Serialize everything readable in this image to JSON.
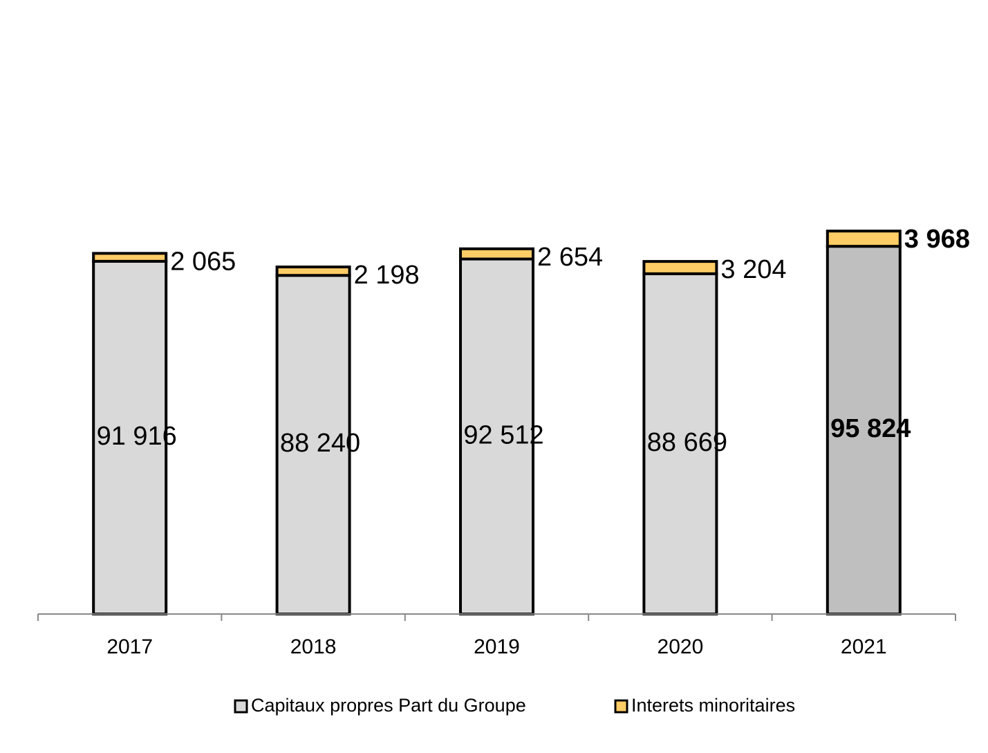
{
  "chart_data": {
    "type": "stacked-bar",
    "categories": [
      "2017",
      "2018",
      "2019",
      "2020",
      "2021"
    ],
    "series": [
      {
        "name": "Capitaux propres Part du Groupe",
        "color": "#d9d9d9",
        "colors": [
          "#d9d9d9",
          "#d9d9d9",
          "#d9d9d9",
          "#d9d9d9",
          "#bfbfbf"
        ],
        "values": [
          91916,
          88240,
          92512,
          88669,
          95824
        ],
        "value_labels": [
          "91 916",
          "88 240",
          "92 512",
          "88 669",
          "95 824"
        ]
      },
      {
        "name": "Interets minoritaires",
        "color": "#ffcc66",
        "values": [
          2065,
          2198,
          2654,
          3204,
          3968
        ],
        "value_labels": [
          "2 065",
          "2 198",
          "2 654",
          "3 204",
          "3 968"
        ]
      }
    ],
    "ylim": [
      0,
      160000
    ]
  }
}
